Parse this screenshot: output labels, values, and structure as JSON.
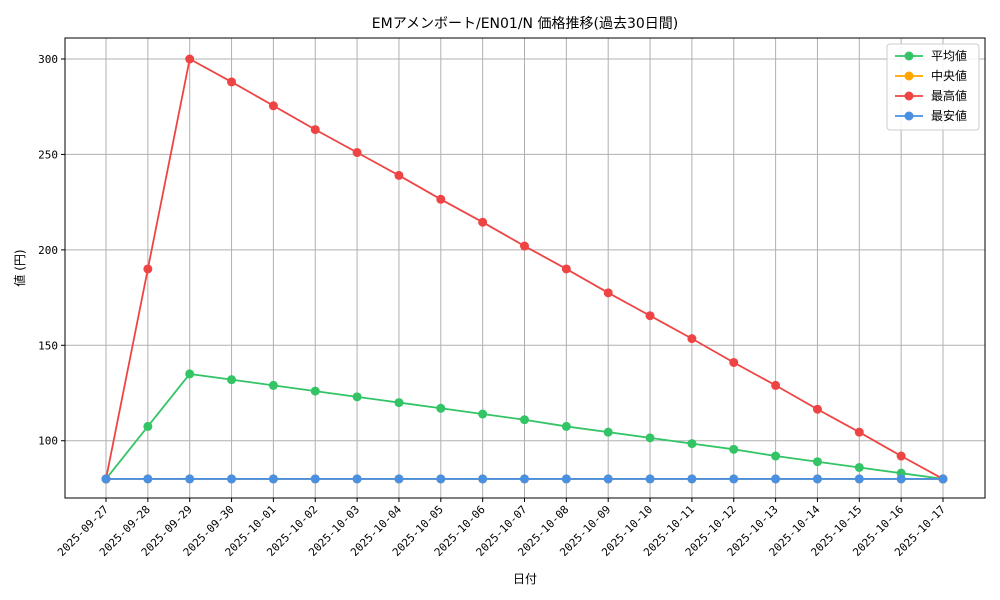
{
  "chart_data": {
    "type": "line",
    "title": "EMアメンボート/EN01/N 価格推移(過去30日間)",
    "xlabel": "日付",
    "ylabel": "値 (円)",
    "categories": [
      "2025-09-27",
      "2025-09-28",
      "2025-09-29",
      "2025-09-30",
      "2025-10-01",
      "2025-10-02",
      "2025-10-03",
      "2025-10-04",
      "2025-10-05",
      "2025-10-06",
      "2025-10-07",
      "2025-10-08",
      "2025-10-09",
      "2025-10-10",
      "2025-10-11",
      "2025-10-12",
      "2025-10-13",
      "2025-10-14",
      "2025-10-15",
      "2025-10-16",
      "2025-10-17"
    ],
    "ylim": [
      70,
      311
    ],
    "yticks": [
      100,
      150,
      200,
      250,
      300
    ],
    "grid": true,
    "legend_position": "top-right",
    "series": [
      {
        "name": "平均値",
        "color": "#33c466",
        "values": [
          80,
          107.5,
          135,
          132,
          129,
          126,
          123,
          120,
          117,
          114,
          111,
          107.5,
          104.5,
          101.5,
          98.5,
          95.5,
          92,
          89,
          86,
          83,
          80
        ]
      },
      {
        "name": "中央値",
        "color": "#ffa500",
        "values": [
          80,
          80,
          80,
          80,
          80,
          80,
          80,
          80,
          80,
          80,
          80,
          80,
          80,
          80,
          80,
          80,
          80,
          80,
          80,
          80,
          80
        ]
      },
      {
        "name": "最高値",
        "color": "#ef4444",
        "values": [
          80,
          190,
          300,
          288,
          275.5,
          263,
          251,
          239,
          226.5,
          214.5,
          202,
          190,
          177.5,
          165.5,
          153.5,
          141,
          129,
          116.5,
          104.5,
          92,
          80
        ]
      },
      {
        "name": "最安値",
        "color": "#4a90e2",
        "values": [
          80,
          80,
          80,
          80,
          80,
          80,
          80,
          80,
          80,
          80,
          80,
          80,
          80,
          80,
          80,
          80,
          80,
          80,
          80,
          80,
          80
        ]
      }
    ]
  }
}
